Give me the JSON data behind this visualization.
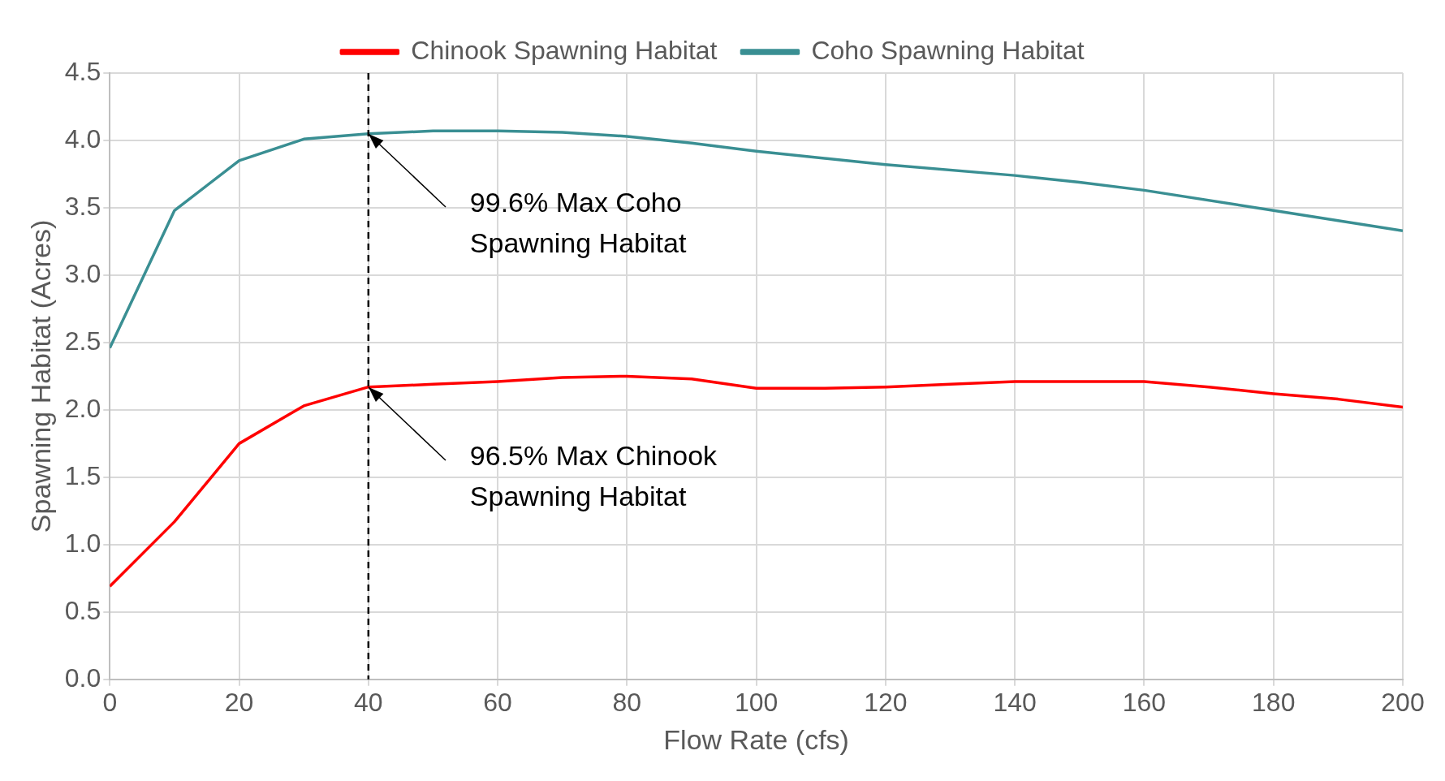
{
  "chart_data": {
    "type": "line",
    "xlabel": "Flow Rate (cfs)",
    "ylabel": "Spawning Habitat (Acres)",
    "xlim": [
      0,
      200
    ],
    "xticks": [
      0,
      20,
      40,
      60,
      80,
      100,
      120,
      140,
      160,
      180,
      200
    ],
    "ylim": [
      0,
      4.5
    ],
    "yticks": [
      {
        "value": 0,
        "label": "0.0"
      },
      0.5,
      {
        "value": 1,
        "label": "1.0"
      },
      1.5,
      {
        "value": 2,
        "label": "2.0"
      },
      2.5,
      {
        "value": 3,
        "label": "3.0"
      },
      3.5,
      {
        "value": 4,
        "label": "4.0"
      },
      4.5
    ],
    "grid": true,
    "legend": "top",
    "marker": "none",
    "line_style": "solid",
    "series": [
      {
        "name": "Chinook Spawning Habitat",
        "color": "#ff0000",
        "x": [
          0,
          10,
          20,
          30,
          40,
          50,
          60,
          70,
          80,
          90,
          100,
          110,
          120,
          130,
          140,
          150,
          160,
          170,
          180,
          190,
          200
        ],
        "values": [
          0.69,
          1.17,
          1.75,
          2.03,
          2.17,
          2.19,
          2.21,
          2.24,
          2.25,
          2.23,
          2.16,
          2.16,
          2.17,
          2.19,
          2.21,
          2.21,
          2.21,
          2.17,
          2.12,
          2.08,
          2.02
        ]
      },
      {
        "name": "Coho Spawning Habitat",
        "color": "#3a8f93",
        "x": [
          0,
          10,
          20,
          30,
          40,
          50,
          60,
          70,
          80,
          90,
          100,
          120,
          140,
          150,
          160,
          180,
          200
        ],
        "values": [
          2.46,
          3.48,
          3.85,
          4.01,
          4.05,
          4.07,
          4.07,
          4.06,
          4.03,
          3.98,
          3.92,
          3.82,
          3.74,
          3.69,
          3.63,
          3.48,
          3.33
        ]
      }
    ],
    "ref_lines": [
      {
        "axis": "x",
        "value": 40,
        "color": "#000000",
        "line_style": "dashed"
      }
    ],
    "annotations": [
      {
        "text": "99.6% Max Coho Spawning Habitat",
        "x": 40,
        "y": 4.05
      },
      {
        "text": "96.5% Max Chinook Spawning Habitat",
        "x": 40,
        "y": 2.17
      }
    ]
  }
}
